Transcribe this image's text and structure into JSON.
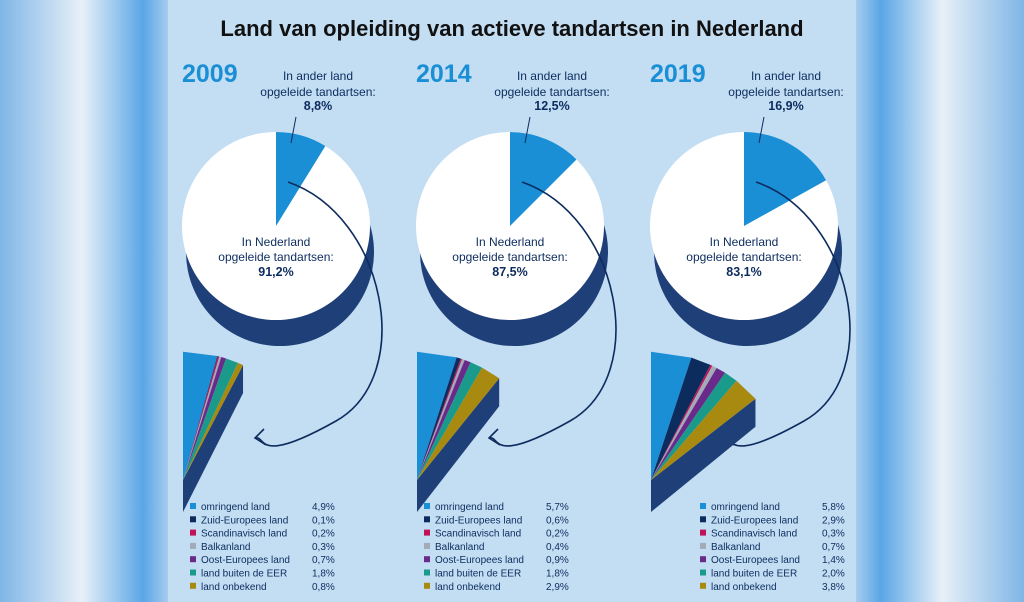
{
  "title": "Land van opleiding van actieve tandartsen in Nederland",
  "colors": {
    "nederland": "#ffffff",
    "ander_land": "#1a8fd6",
    "depth": "#1f3f78",
    "categories": [
      "#1a8fd6",
      "#0d2c5e",
      "#c0135a",
      "#a3aab8",
      "#6a2a8a",
      "#1a9a8a",
      "#a88a10"
    ]
  },
  "chart_data": [
    {
      "type": "pie",
      "year": "2009",
      "foreign_label": [
        "In ander land",
        "opgeleide tandartsen:"
      ],
      "foreign_value": "8,8%",
      "domestic_label": [
        "In Nederland",
        "opgeleide tandartsen:"
      ],
      "domestic_value": "91,2%",
      "slices": [
        {
          "name": "In Nederland opgeleide tandartsen",
          "value": 91.2
        },
        {
          "name": "In ander land opgeleide tandartsen",
          "value": 8.8
        }
      ],
      "breakdown": {
        "categories": [
          "omringend land",
          "Zuid-Europees land",
          "Scandinavisch land",
          "Balkanland",
          "Oost-Europees land",
          "land buiten de EER",
          "land onbekend"
        ],
        "values": [
          4.9,
          0.1,
          0.2,
          0.3,
          0.7,
          1.8,
          0.8
        ],
        "labels": [
          "4,9%",
          "0,1%",
          "0,2%",
          "0,3%",
          "0,7%",
          "1,8%",
          "0,8%"
        ]
      }
    },
    {
      "type": "pie",
      "year": "2014",
      "foreign_label": [
        "In ander land",
        "opgeleide tandartsen:"
      ],
      "foreign_value": "12,5%",
      "domestic_label": [
        "In Nederland",
        "opgeleide tandartsen:"
      ],
      "domestic_value": "87,5%",
      "slices": [
        {
          "name": "In Nederland opgeleide tandartsen",
          "value": 87.5
        },
        {
          "name": "In ander land opgeleide tandartsen",
          "value": 12.5
        }
      ],
      "breakdown": {
        "categories": [
          "omringend land",
          "Zuid-Europees land",
          "Scandinavisch land",
          "Balkanland",
          "Oost-Europees land",
          "land buiten de EER",
          "land onbekend"
        ],
        "values": [
          5.7,
          0.6,
          0.2,
          0.4,
          0.9,
          1.8,
          2.9
        ],
        "labels": [
          "5,7%",
          "0,6%",
          "0,2%",
          "0,4%",
          "0,9%",
          "1,8%",
          "2,9%"
        ]
      }
    },
    {
      "type": "pie",
      "year": "2019",
      "foreign_label": [
        "In ander land",
        "opgeleide tandartsen:"
      ],
      "foreign_value": "16,9%",
      "domestic_label": [
        "In Nederland",
        "opgeleide tandartsen:"
      ],
      "domestic_value": "83,1%",
      "slices": [
        {
          "name": "In Nederland opgeleide tandartsen",
          "value": 83.1
        },
        {
          "name": "In ander land opgeleide tandartsen",
          "value": 16.9
        }
      ],
      "breakdown": {
        "categories": [
          "omringend land",
          "Zuid-Europees land",
          "Scandinavisch land",
          "Balkanland",
          "Oost-Europees land",
          "land buiten de EER",
          "land onbekend"
        ],
        "values": [
          5.8,
          2.9,
          0.3,
          0.7,
          1.4,
          2.0,
          3.8
        ],
        "labels": [
          "5,8%",
          "2,9%",
          "0,3%",
          "0,7%",
          "1,4%",
          "2,0%",
          "3,8%"
        ]
      }
    }
  ]
}
